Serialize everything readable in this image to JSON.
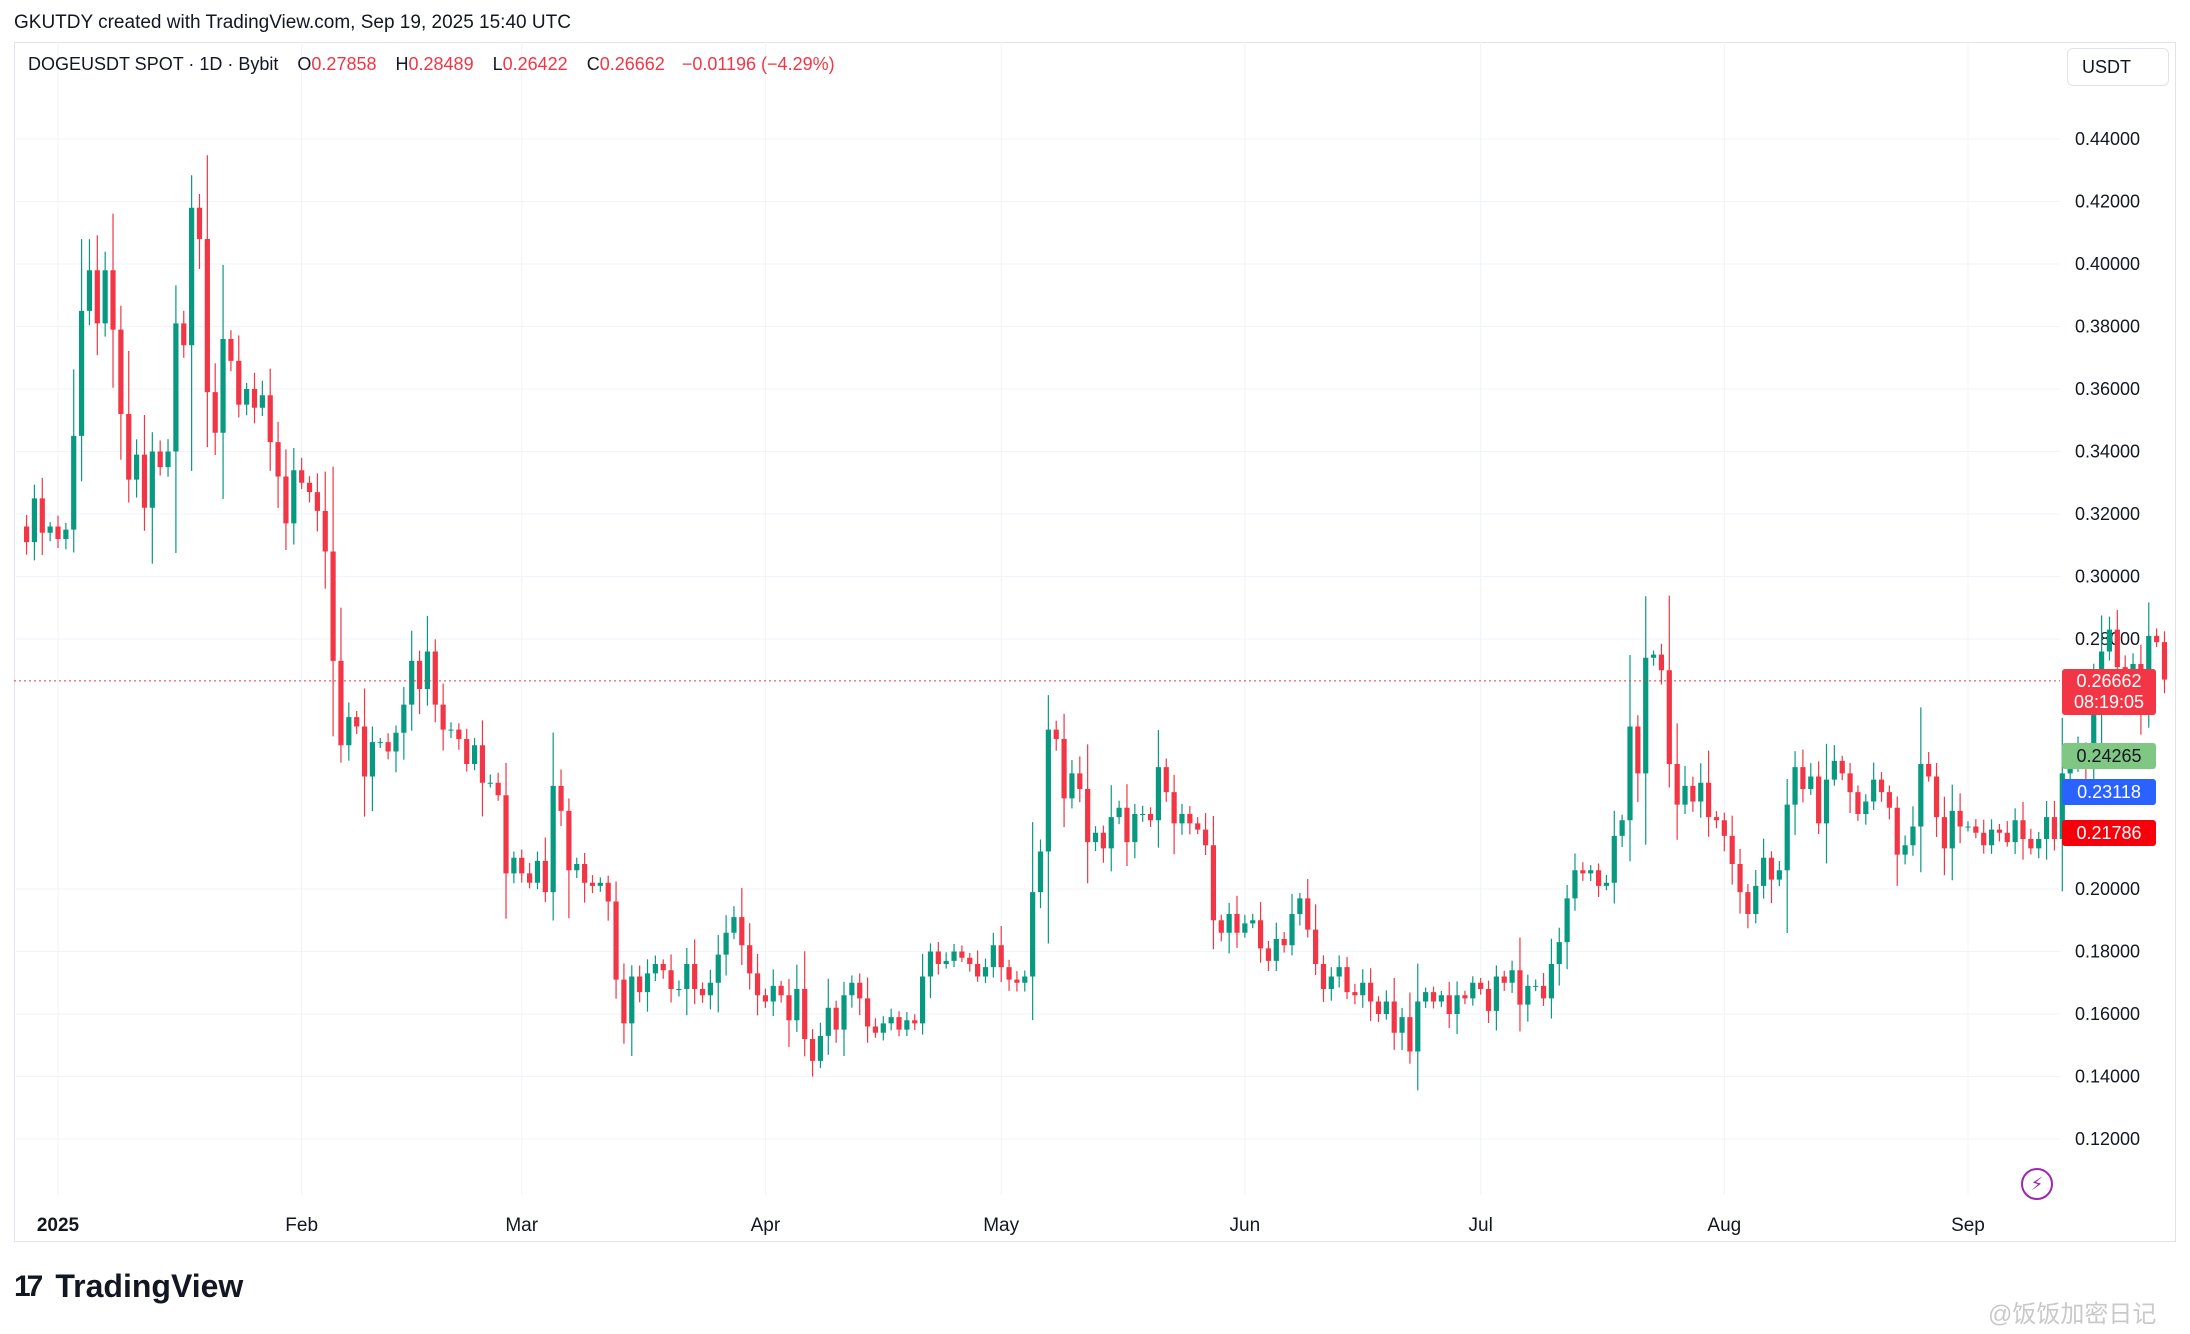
{
  "header": {
    "text": "GKUTDY created with TradingView.com, Sep 19, 2025 15:40 UTC"
  },
  "legend": {
    "symbol": "DOGEUSDT SPOT · 1D · Bybit",
    "open_key": "O",
    "open": "0.27858",
    "high_key": "H",
    "high": "0.28489",
    "low_key": "L",
    "low": "0.26422",
    "close_key": "C",
    "close": "0.26662",
    "change": "−0.01196 (−4.29%)"
  },
  "currency": "USDT",
  "price_tags": {
    "last_price": "0.26662",
    "countdown": "08:19:05",
    "tag_green": "0.24265",
    "tag_blue": "0.23118",
    "tag_red": "0.21786"
  },
  "logo": {
    "mark": "17",
    "text": "TradingView"
  },
  "watermark": "@饭饭加密日记",
  "colors": {
    "up": "#089981",
    "down": "#f23645",
    "grid": "#f0f3fa",
    "accent_purple": "#9c27b0"
  },
  "icons": {
    "alert": "lightning-bolt-icon"
  },
  "chart_data": {
    "type": "candlestick",
    "title": "",
    "xlabel": "",
    "ylabel": "",
    "ylim": [
      0.1,
      0.455
    ],
    "y_ticks": [
      "0.44000",
      "0.42000",
      "0.40000",
      "0.38000",
      "0.36000",
      "0.34000",
      "0.32000",
      "0.30000",
      "0.28000",
      "0.20000",
      "0.18000",
      "0.16000",
      "0.14000",
      "0.12000"
    ],
    "x_ticks": [
      {
        "label": "2025",
        "date": "2025-01-01",
        "bold": true
      },
      {
        "label": "Feb",
        "date": "2025-02-01"
      },
      {
        "label": "Mar",
        "date": "2025-03-01"
      },
      {
        "label": "Apr",
        "date": "2025-04-01"
      },
      {
        "label": "May",
        "date": "2025-05-01"
      },
      {
        "label": "Jun",
        "date": "2025-06-01"
      },
      {
        "label": "Jul",
        "date": "2025-07-01"
      },
      {
        "label": "Aug",
        "date": "2025-08-01"
      },
      {
        "label": "Sep",
        "date": "2025-09-01"
      }
    ],
    "last_price_line": 0.26662,
    "closes": [
      0.311,
      0.325,
      0.314,
      0.316,
      0.312,
      0.315,
      0.345,
      0.385,
      0.398,
      0.381,
      0.398,
      0.379,
      0.352,
      0.331,
      0.339,
      0.322,
      0.34,
      0.335,
      0.34,
      0.381,
      0.374,
      0.418,
      0.408,
      0.359,
      0.346,
      0.376,
      0.369,
      0.355,
      0.36,
      0.354,
      0.358,
      0.343,
      0.332,
      0.317,
      0.334,
      0.33,
      0.327,
      0.321,
      0.308,
      0.273,
      0.246,
      0.255,
      0.252,
      0.236,
      0.247,
      0.247,
      0.244,
      0.25,
      0.259,
      0.273,
      0.264,
      0.276,
      0.259,
      0.251,
      0.251,
      0.248,
      0.24,
      0.246,
      0.234,
      0.234,
      0.23,
      0.205,
      0.21,
      0.205,
      0.202,
      0.209,
      0.199,
      0.233,
      0.225,
      0.206,
      0.208,
      0.202,
      0.201,
      0.202,
      0.196,
      0.171,
      0.157,
      0.172,
      0.167,
      0.173,
      0.176,
      0.174,
      0.168,
      0.168,
      0.176,
      0.168,
      0.166,
      0.17,
      0.179,
      0.186,
      0.191,
      0.182,
      0.173,
      0.166,
      0.164,
      0.169,
      0.166,
      0.158,
      0.168,
      0.152,
      0.145,
      0.153,
      0.162,
      0.155,
      0.166,
      0.17,
      0.165,
      0.156,
      0.154,
      0.157,
      0.159,
      0.155,
      0.158,
      0.157,
      0.172,
      0.18,
      0.176,
      0.177,
      0.18,
      0.178,
      0.176,
      0.172,
      0.175,
      0.182,
      0.175,
      0.171,
      0.17,
      0.172,
      0.199,
      0.212,
      0.251,
      0.248,
      0.229,
      0.237,
      0.232,
      0.215,
      0.218,
      0.213,
      0.223,
      0.226,
      0.215,
      0.224,
      0.224,
      0.222,
      0.239,
      0.231,
      0.221,
      0.224,
      0.221,
      0.219,
      0.214,
      0.19,
      0.186,
      0.192,
      0.186,
      0.189,
      0.19,
      0.181,
      0.177,
      0.184,
      0.182,
      0.192,
      0.197,
      0.187,
      0.176,
      0.168,
      0.172,
      0.175,
      0.167,
      0.166,
      0.17,
      0.164,
      0.16,
      0.164,
      0.154,
      0.159,
      0.148,
      0.164,
      0.167,
      0.164,
      0.166,
      0.16,
      0.166,
      0.165,
      0.17,
      0.168,
      0.161,
      0.172,
      0.17,
      0.174,
      0.163,
      0.169,
      0.169,
      0.165,
      0.176,
      0.183,
      0.197,
      0.206,
      0.205,
      0.206,
      0.201,
      0.202,
      0.217,
      0.222,
      0.252,
      0.237,
      0.274,
      0.275,
      0.27,
      0.24,
      0.227,
      0.233,
      0.228,
      0.234,
      0.223,
      0.222,
      0.217,
      0.208,
      0.199,
      0.192,
      0.201,
      0.21,
      0.203,
      0.206,
      0.227,
      0.239,
      0.232,
      0.236,
      0.221,
      0.235,
      0.241,
      0.237,
      0.231,
      0.224,
      0.228,
      0.235,
      0.231,
      0.226,
      0.211,
      0.214,
      0.22,
      0.24,
      0.236,
      0.223,
      0.213,
      0.225,
      0.22,
      0.22,
      0.218,
      0.214,
      0.219,
      0.218,
      0.215,
      0.222,
      0.216,
      0.213,
      0.216,
      0.223,
      0.216,
      0.237,
      0.241,
      0.245,
      0.24,
      0.256,
      0.276,
      0.283,
      0.271,
      0.263,
      0.272,
      0.258,
      0.281,
      0.279,
      0.267
    ]
  }
}
